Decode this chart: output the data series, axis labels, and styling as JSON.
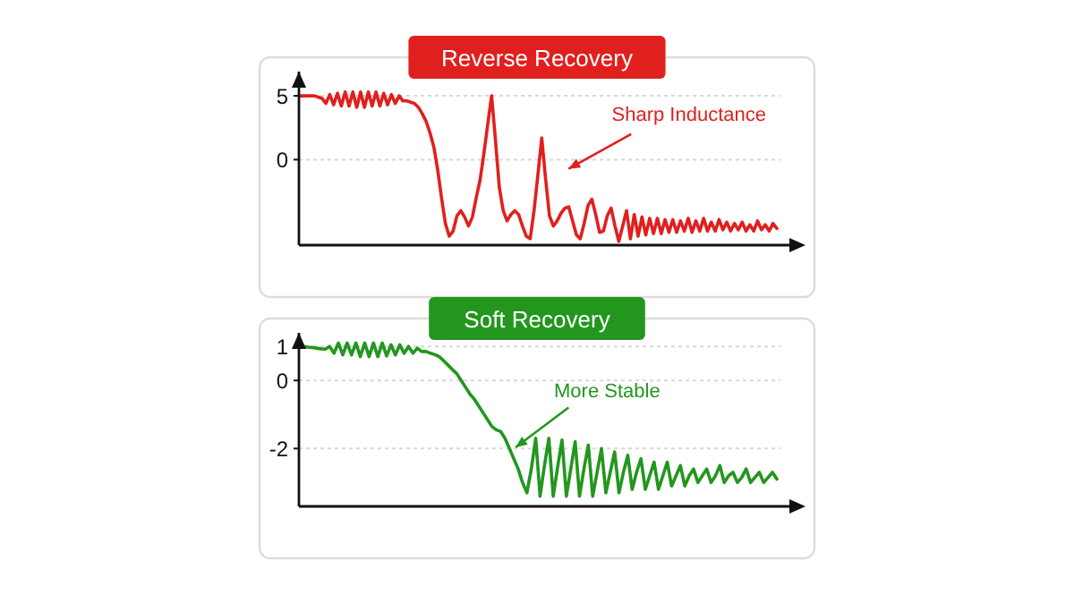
{
  "chart_data": [
    {
      "type": "line",
      "title": "Reverse Recovery",
      "categories": [
        null,
        null,
        null,
        null,
        null,
        null,
        null,
        null,
        null,
        null,
        null,
        null,
        null,
        null,
        null,
        null,
        null,
        null,
        null,
        null,
        null,
        null,
        null,
        null,
        null,
        null,
        null,
        null,
        null,
        null,
        null,
        null,
        null,
        null,
        null,
        null,
        null,
        null,
        null,
        null,
        null,
        null,
        null,
        null,
        null,
        null,
        null,
        null,
        null,
        null,
        null,
        null,
        null,
        null,
        null,
        null,
        null,
        null,
        null,
        null,
        null,
        null,
        null,
        null,
        null,
        null,
        null,
        null,
        null,
        null,
        null,
        null,
        null,
        null,
        null,
        null,
        null,
        null,
        null,
        null,
        null,
        null,
        null,
        null,
        null,
        null,
        null,
        null,
        null,
        null,
        null,
        null,
        null,
        null,
        null,
        null,
        null,
        null,
        null,
        null,
        null,
        null,
        null,
        null,
        null,
        null,
        null,
        null,
        null,
        null,
        null,
        null,
        null,
        null,
        null,
        null,
        null,
        null,
        null,
        null,
        null,
        null,
        null,
        null,
        null
      ],
      "series": [
        {
          "color": "#e0201e",
          "values": [
            5,
            5,
            5,
            5,
            5,
            4.9,
            4.8,
            4.4,
            5.1,
            4.3,
            5.2,
            4.2,
            5.3,
            4.2,
            5.3,
            4.1,
            5.3,
            4.1,
            5.3,
            4.2,
            5.3,
            4.2,
            5.2,
            4.3,
            5.1,
            4.4,
            5,
            4.6,
            4.6,
            4.5,
            4.4,
            4.1,
            3.6,
            3,
            2.1,
            1,
            -0.8,
            -3,
            -5,
            -6,
            -5.6,
            -4.4,
            -4,
            -4.5,
            -5.2,
            -4.5,
            -3,
            -1.6,
            0.5,
            2.8,
            5,
            1.5,
            -2.2,
            -4,
            -4.8,
            -4.3,
            -4,
            -4.3,
            -5.2,
            -6,
            -6.2,
            -4,
            -1.2,
            1.7,
            -1.5,
            -4.4,
            -5.2,
            -4.8,
            -4.2,
            -3.8,
            -3.7,
            -4.8,
            -5.9,
            -6.2,
            -5,
            -3.6,
            -3.1,
            -4.3,
            -5.7,
            -5.6,
            -4.4,
            -3.8,
            -5.2,
            -6.4,
            -5.2,
            -4,
            -6.2,
            -4.3,
            -6,
            -4.5,
            -5.9,
            -4.6,
            -5.8,
            -4.6,
            -5.8,
            -4.7,
            -5.7,
            -4.7,
            -5.7,
            -4.8,
            -5.6,
            -4.6,
            -5.7,
            -4.8,
            -5.6,
            -4.6,
            -5.6,
            -4.9,
            -5.6,
            -4.7,
            -5.5,
            -4.9,
            -5.6,
            -5,
            -5.5,
            -4.9,
            -5.6,
            -5.1,
            -5.6,
            -4.8,
            -5.5,
            -5.1,
            -5.6,
            -5,
            -5.4
          ]
        }
      ],
      "ylim": [
        -6.7,
        6.9
      ],
      "yticks": [
        0,
        5
      ],
      "grid": "y",
      "tick_labels": "y",
      "line_style": "solid",
      "annotations": [
        "Sharp Inductance"
      ]
    },
    {
      "type": "line",
      "title": "Soft Recovery",
      "categories": [
        null,
        null,
        null,
        null,
        null,
        null,
        null,
        null,
        null,
        null,
        null,
        null,
        null,
        null,
        null,
        null,
        null,
        null,
        null,
        null,
        null,
        null,
        null,
        null,
        null,
        null,
        null,
        null,
        null,
        null,
        null,
        null,
        null,
        null,
        null,
        null,
        null,
        null,
        null,
        null,
        null,
        null,
        null,
        null,
        null,
        null,
        null,
        null,
        null,
        null,
        null,
        null,
        null,
        null,
        null,
        null,
        null,
        null,
        null,
        null,
        null,
        null,
        null,
        null,
        null,
        null,
        null,
        null,
        null,
        null,
        null,
        null,
        null,
        null,
        null,
        null,
        null,
        null,
        null,
        null,
        null,
        null,
        null,
        null,
        null,
        null,
        null,
        null,
        null,
        null,
        null,
        null,
        null,
        null,
        null,
        null,
        null,
        null,
        null,
        null,
        null,
        null,
        null,
        null,
        null,
        null,
        null,
        null,
        null,
        null
      ],
      "series": [
        {
          "color": "#23961e",
          "values": [
            1,
            1,
            0.98,
            0.97,
            0.95,
            0.93,
            0.92,
            1,
            0.8,
            1.1,
            0.75,
            1.1,
            0.75,
            1.1,
            0.7,
            1.1,
            0.7,
            1.1,
            0.7,
            1.1,
            0.72,
            1.05,
            0.75,
            1.05,
            0.8,
            1,
            0.8,
            0.95,
            0.85,
            0.85,
            0.8,
            0.76,
            0.7,
            0.58,
            0.45,
            0.32,
            0.2,
            0,
            -0.2,
            -0.4,
            -0.55,
            -0.75,
            -0.95,
            -1.15,
            -1.35,
            -1.45,
            -1.5,
            -1.7,
            -2,
            -2.3,
            -2.6,
            -3,
            -3.3,
            -2.6,
            -1.7,
            -3.4,
            -2.5,
            -1.7,
            -3.4,
            -2.55,
            -1.75,
            -3.4,
            -2.6,
            -1.8,
            -3.4,
            -2.6,
            -1.9,
            -3.4,
            -2.7,
            -2,
            -3.3,
            -2.7,
            -2.1,
            -3.3,
            -2.7,
            -2.2,
            -3.2,
            -2.7,
            -2.3,
            -3.2,
            -2.8,
            -2.4,
            -3.2,
            -2.8,
            -2.4,
            -3.1,
            -2.8,
            -2.5,
            -3.1,
            -2.8,
            -2.6,
            -3,
            -2.8,
            -2.6,
            -3,
            -2.8,
            -2.5,
            -3,
            -2.8,
            -2.7,
            -3,
            -2.85,
            -2.6,
            -3,
            -2.85,
            -2.7,
            -3,
            -2.85,
            -2.7,
            -2.9
          ]
        }
      ],
      "ylim": [
        -3.7,
        1.4
      ],
      "yticks": [
        -2,
        0,
        1
      ],
      "grid": "y",
      "tick_labels": "y",
      "line_style": "solid",
      "annotations": [
        "More Stable"
      ]
    }
  ]
}
